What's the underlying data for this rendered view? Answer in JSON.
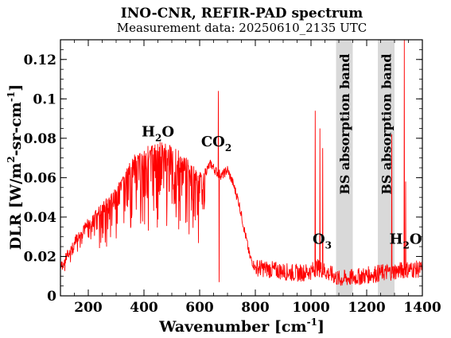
{
  "chart_data": {
    "type": "line",
    "title": "INO-CNR, REFIR-PAD spectrum",
    "subtitle": "Measurement data: 20250610_2135 UTC",
    "xlabel": {
      "base": "Wavenumber [cm",
      "sup": "-1",
      "end": "]"
    },
    "ylabel": {
      "p1": "DLR [W/m",
      "sup1": "2",
      "p2": "-sr-cm",
      "sup2": "-1",
      "p3": "]"
    },
    "xlim": [
      100,
      1400
    ],
    "ylim": [
      0,
      0.13
    ],
    "xticks": [
      200,
      400,
      600,
      800,
      1000,
      1200,
      1400
    ],
    "xtick_labels": [
      "200",
      "400",
      "600",
      "800",
      "1000",
      "1200",
      "1400"
    ],
    "yticks": [
      0,
      0.02,
      0.04,
      0.06,
      0.08,
      0.1,
      0.12
    ],
    "ytick_labels": [
      "0",
      "0.02",
      "0.04",
      "0.06",
      "0.08",
      "0.1",
      "0.12"
    ],
    "line_color": "#ff0000",
    "band_color": "#d9d9d9",
    "bands": [
      {
        "x0": 1090,
        "x1": 1150,
        "label": "BS absorption band"
      },
      {
        "x0": 1240,
        "x1": 1300,
        "label": "BS absorption band"
      }
    ],
    "annotations": [
      {
        "x": 450,
        "y": 0.081,
        "base": "H",
        "sub": "2",
        "end": "O"
      },
      {
        "x": 660,
        "y": 0.076,
        "base": "CO",
        "sub": "2",
        "end": ""
      },
      {
        "x": 1040,
        "y": 0.0265,
        "base": "O",
        "sub": "3",
        "end": ""
      },
      {
        "x": 1340,
        "y": 0.0265,
        "base": "H",
        "sub": "2",
        "end": "O"
      }
    ],
    "series": [
      {
        "envelope_x": [
          100,
          120,
          150,
          180,
          200,
          230,
          260,
          300,
          330,
          360,
          400,
          430,
          460,
          490,
          520,
          550,
          580,
          600,
          620,
          640,
          660,
          680,
          700,
          720,
          740,
          760,
          780,
          800,
          850,
          900,
          950,
          1000,
          1020,
          1040,
          1060,
          1080,
          1100,
          1160,
          1200,
          1240,
          1300,
          1350,
          1400
        ],
        "envelope_y": [
          0.015,
          0.02,
          0.028,
          0.034,
          0.038,
          0.043,
          0.048,
          0.055,
          0.062,
          0.069,
          0.074,
          0.076,
          0.077,
          0.076,
          0.073,
          0.069,
          0.064,
          0.061,
          0.063,
          0.067,
          0.063,
          0.061,
          0.064,
          0.057,
          0.048,
          0.034,
          0.02,
          0.014,
          0.013,
          0.012,
          0.011,
          0.012,
          0.014,
          0.013,
          0.011,
          0.01,
          0.008,
          0.009,
          0.01,
          0.011,
          0.012,
          0.013,
          0.013
        ],
        "spikes": [
          {
            "x": 667,
            "y": 0.104
          },
          {
            "x": 670,
            "y": 0.007
          },
          {
            "x": 1015,
            "y": 0.094
          },
          {
            "x": 1032,
            "y": 0.085
          },
          {
            "x": 1042,
            "y": 0.075
          },
          {
            "x": 1290,
            "y": 0.082
          },
          {
            "x": 1335,
            "y": 0.13
          },
          {
            "x": 1340,
            "y": 0.058
          }
        ]
      }
    ]
  }
}
